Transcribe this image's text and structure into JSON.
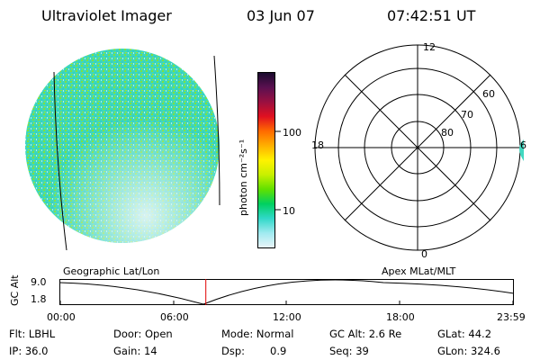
{
  "header": {
    "instrument": "Ultraviolet Imager",
    "date": "03 Jun 07",
    "time": "07:42:51 UT"
  },
  "image_panel": {
    "caption": "Geographic Lat/Lon"
  },
  "colorbar": {
    "label": "photon cm⁻²s⁻¹",
    "ticks": [
      "100",
      "10"
    ],
    "colors": [
      "#1a0b2e",
      "#5a1050",
      "#9a1040",
      "#e01020",
      "#ff6a00",
      "#ffb000",
      "#fff200",
      "#c8f000",
      "#60e000",
      "#00d060",
      "#30d8c8",
      "#a0eaf0",
      "#e8f4f8"
    ]
  },
  "polar_plot": {
    "caption": "Apex  MLat/MLT",
    "mlt_labels": {
      "top": "12",
      "left": "18",
      "right": "6",
      "bottom": "0"
    },
    "lat_labels": [
      "60",
      "70",
      "80"
    ]
  },
  "timeline": {
    "ylabel": "GC Alt",
    "ytick_top": "9.0",
    "ytick_bottom": "1.8",
    "xticks": [
      "00:00",
      "06:00",
      "12:00",
      "18:00",
      "23:59"
    ],
    "current_time_hours": 7.714
  },
  "status": {
    "flt": "Flt: LBHL",
    "ip": "IP: 36.0",
    "door": "Door: Open",
    "gain": "Gain: 14",
    "mode": "Mode: Normal",
    "dsp_label": "Dsp:",
    "dsp_value": "0.9",
    "gcalt": "GC Alt: 2.6 Re",
    "seq": "Seq: 39",
    "glat": "GLat:  44.2",
    "glon": "GLon: 324.6"
  }
}
